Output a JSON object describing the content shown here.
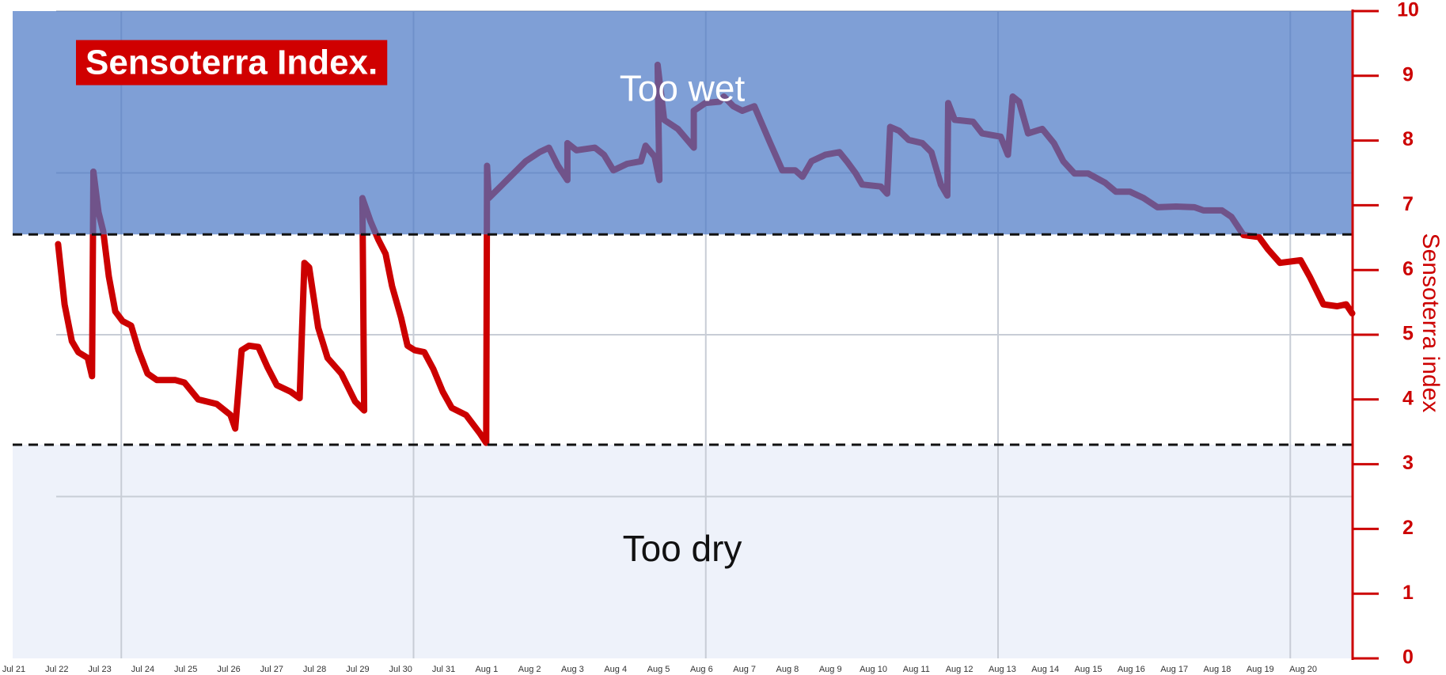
{
  "chart_data": {
    "type": "line",
    "title": "Sensoterra Index.",
    "y_axis_label": "Sensoterra index",
    "y_axis_side": "right",
    "axis_color": "#cc0000",
    "ylim": [
      0,
      10
    ],
    "yticks": [
      0,
      1,
      2,
      3,
      4,
      5,
      6,
      7,
      8,
      9,
      10
    ],
    "xlim": [
      0,
      31.15
    ],
    "xticks": [
      {
        "value": 0,
        "label": "Jul 21"
      },
      {
        "value": 1,
        "label": "Jul 22"
      },
      {
        "value": 2,
        "label": "Jul 23"
      },
      {
        "value": 3,
        "label": "Jul 24"
      },
      {
        "value": 4,
        "label": "Jul 25"
      },
      {
        "value": 5,
        "label": "Jul 26"
      },
      {
        "value": 6,
        "label": "Jul 27"
      },
      {
        "value": 7,
        "label": "Jul 28"
      },
      {
        "value": 8,
        "label": "Jul 29"
      },
      {
        "value": 9,
        "label": "Jul 30"
      },
      {
        "value": 10,
        "label": "Jul 31"
      },
      {
        "value": 11,
        "label": "Aug 1"
      },
      {
        "value": 12,
        "label": "Aug 2"
      },
      {
        "value": 13,
        "label": "Aug 3"
      },
      {
        "value": 14,
        "label": "Aug 4"
      },
      {
        "value": 15,
        "label": "Aug 5"
      },
      {
        "value": 16,
        "label": "Aug 6"
      },
      {
        "value": 17,
        "label": "Aug 7"
      },
      {
        "value": 18,
        "label": "Aug 8"
      },
      {
        "value": 19,
        "label": "Aug 9"
      },
      {
        "value": 20,
        "label": "Aug 10"
      },
      {
        "value": 21,
        "label": "Aug 11"
      },
      {
        "value": 22,
        "label": "Aug 12"
      },
      {
        "value": 23,
        "label": "Aug 13"
      },
      {
        "value": 24,
        "label": "Aug 14"
      },
      {
        "value": 25,
        "label": "Aug 15"
      },
      {
        "value": 26,
        "label": "Aug 16"
      },
      {
        "value": 27,
        "label": "Aug 17"
      },
      {
        "value": 28,
        "label": "Aug 18"
      },
      {
        "value": 29,
        "label": "Aug 19"
      },
      {
        "value": 30,
        "label": "Aug 20"
      }
    ],
    "xgrid": [
      2.5,
      9.3,
      16.1,
      22.9,
      29.7
    ],
    "ygrid": [
      2.5,
      5,
      7.5
    ],
    "zones": [
      {
        "label": "Too wet",
        "from": 6.55,
        "to": 10,
        "color": "#4876c4",
        "opacity": 0.7,
        "text_color": "#ffffff"
      },
      {
        "label": "Too dry",
        "from": 0,
        "to": 3.3,
        "color": "#eef2fa",
        "opacity": 1,
        "text_color": "#111111"
      }
    ],
    "series": [
      {
        "color": "#cc0000",
        "x": [
          1.03,
          1.18,
          1.35,
          1.5,
          1.72,
          1.82,
          1.85,
          1.97,
          2.08,
          2.21,
          2.36,
          2.53,
          2.73,
          2.9,
          3.11,
          3.33,
          3.76,
          3.97,
          4.29,
          4.72,
          5.04,
          5.15,
          5.3,
          5.47,
          5.69,
          5.9,
          6.12,
          6.44,
          6.65,
          6.76,
          6.87,
          7.08,
          7.3,
          7.62,
          7.94,
          8.15,
          8.11,
          8.3,
          8.48,
          8.65,
          8.8,
          9.01,
          9.16,
          9.33,
          9.55,
          9.76,
          9.98,
          10.19,
          10.52,
          10.84,
          10.99,
          11.01,
          11.05,
          11.37,
          11.91,
          12.23,
          12.45,
          12.66,
          12.88,
          12.88,
          13.09,
          13.52,
          13.73,
          13.95,
          14.27,
          14.59,
          14.7,
          14.91,
          15.02,
          14.98,
          15.13,
          15.45,
          15.82,
          15.82,
          16.09,
          16.42,
          16.52,
          16.74,
          16.95,
          17.23,
          17.6,
          17.88,
          18.18,
          18.35,
          18.56,
          18.88,
          19.21,
          19.38,
          19.59,
          19.74,
          20.17,
          20.32,
          20.39,
          20.6,
          20.82,
          21.14,
          21.35,
          21.57,
          21.72,
          21.74,
          21.89,
          22.32,
          22.53,
          22.96,
          23.13,
          23.24,
          23.39,
          23.6,
          23.93,
          24.2,
          24.42,
          24.68,
          25.0,
          25.39,
          25.64,
          25.97,
          26.29,
          26.61,
          27.04,
          27.47,
          27.68,
          28.11,
          28.33,
          28.61,
          28.97,
          29.18,
          29.46,
          29.94,
          30.15,
          30.47,
          30.79,
          31.0,
          31.14
        ],
        "values": [
          6.4,
          5.47,
          4.9,
          4.73,
          4.64,
          4.36,
          7.52,
          6.89,
          6.6,
          5.9,
          5.36,
          5.21,
          5.14,
          4.76,
          4.4,
          4.3,
          4.3,
          4.26,
          4.0,
          3.93,
          3.76,
          3.55,
          4.76,
          4.83,
          4.81,
          4.5,
          4.22,
          4.12,
          4.02,
          6.11,
          6.04,
          5.11,
          4.64,
          4.4,
          3.97,
          3.83,
          7.11,
          6.75,
          6.47,
          6.25,
          5.75,
          5.26,
          4.83,
          4.76,
          4.73,
          4.47,
          4.12,
          3.87,
          3.76,
          3.48,
          3.33,
          7.61,
          7.11,
          7.32,
          7.68,
          7.82,
          7.89,
          7.61,
          7.39,
          7.96,
          7.85,
          7.89,
          7.78,
          7.54,
          7.64,
          7.68,
          7.92,
          7.75,
          7.39,
          9.17,
          8.32,
          8.18,
          7.89,
          8.46,
          8.58,
          8.6,
          8.68,
          8.53,
          8.46,
          8.53,
          7.96,
          7.54,
          7.54,
          7.44,
          7.68,
          7.78,
          7.82,
          7.68,
          7.49,
          7.32,
          7.29,
          7.18,
          8.21,
          8.15,
          8.01,
          7.96,
          7.82,
          7.32,
          7.15,
          8.58,
          8.32,
          8.29,
          8.11,
          8.06,
          7.78,
          8.68,
          8.6,
          8.11,
          8.18,
          7.96,
          7.68,
          7.49,
          7.49,
          7.35,
          7.21,
          7.21,
          7.11,
          6.97,
          6.98,
          6.97,
          6.92,
          6.92,
          6.82,
          6.54,
          6.51,
          6.32,
          6.11,
          6.15,
          5.9,
          5.47,
          5.44,
          5.47,
          5.33
        ]
      }
    ]
  }
}
